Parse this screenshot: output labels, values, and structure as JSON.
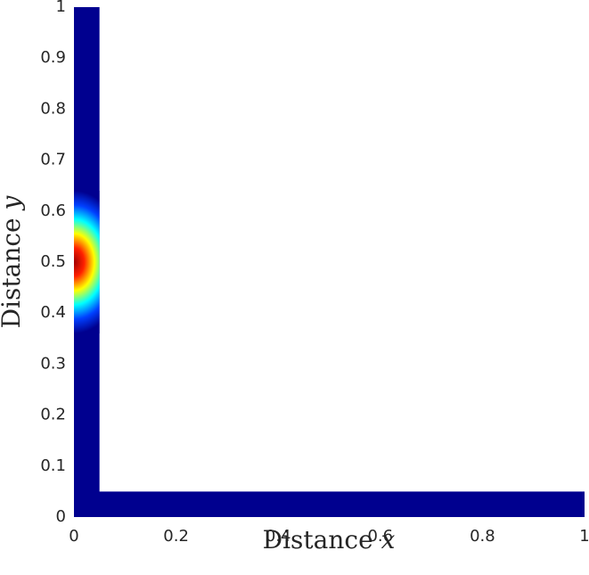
{
  "chart_data": {
    "type": "heatmap",
    "xlabel": {
      "text": "Distance",
      "var": "x"
    },
    "ylabel": {
      "text": "Distance",
      "var": "y"
    },
    "xlim": [
      0,
      1
    ],
    "ylim": [
      0,
      1
    ],
    "xticks": [
      0,
      0.2,
      0.4,
      0.6,
      0.8,
      1
    ],
    "yticks": [
      0,
      0.1,
      0.2,
      0.3,
      0.4,
      0.5,
      0.6,
      0.7,
      0.8,
      0.9,
      1
    ],
    "regions": [
      {
        "x": [
          0,
          0.05
        ],
        "y": [
          0,
          1
        ]
      },
      {
        "x": [
          0,
          1
        ],
        "y": [
          0,
          0.05
        ]
      }
    ],
    "peak": {
      "x": 0,
      "y": 0.5
    },
    "spread": [
      0.1,
      0.14
    ],
    "colormap": [
      "#a00000",
      "#ff2000",
      "#ffff00",
      "#00ffff",
      "#0040ff",
      "#00008f"
    ]
  }
}
